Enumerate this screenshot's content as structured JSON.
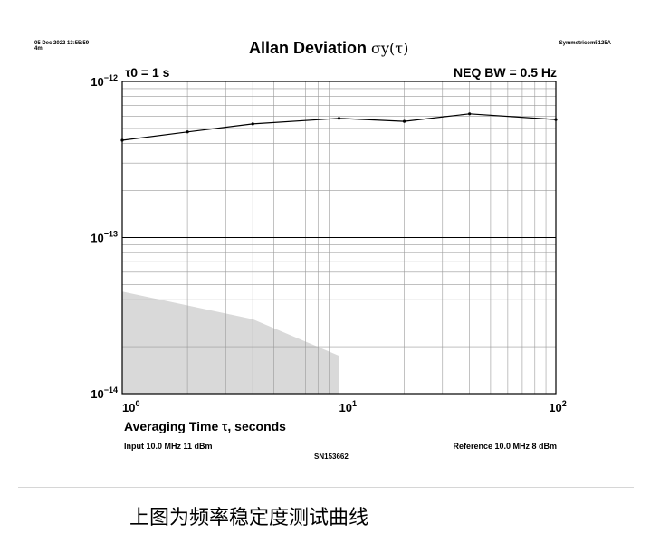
{
  "header": {
    "date_stamp": "05 Dec 2022 13:55:59",
    "duration_stamp": "4m",
    "instrument": "Symmetricom5125A"
  },
  "chart_data": {
    "type": "line",
    "title": "Allan Deviation",
    "title_symbol": "σy(τ)",
    "annotation_left": "τ0 = 1 s",
    "annotation_right": "NEQ BW = 0.5 Hz",
    "xlabel": "Averaging Time τ, seconds",
    "ylabel": "",
    "x_scale": "log",
    "y_scale": "log",
    "xlim": [
      1,
      100
    ],
    "ylim": [
      1e-14,
      1e-12
    ],
    "x_ticks": [
      {
        "value": 1,
        "base": "10",
        "exp": "0"
      },
      {
        "value": 10,
        "base": "10",
        "exp": "1"
      },
      {
        "value": 100,
        "base": "10",
        "exp": "2"
      }
    ],
    "y_ticks": [
      {
        "value": 1e-12,
        "base": "10",
        "exp": "−12"
      },
      {
        "value": 1e-13,
        "base": "10",
        "exp": "−13"
      },
      {
        "value": 1e-14,
        "base": "10",
        "exp": "−14"
      }
    ],
    "grid": true,
    "series": [
      {
        "x": [
          1,
          2,
          4,
          10,
          20,
          40,
          100
        ],
        "y": [
          4.2e-13,
          4.75e-13,
          5.35e-13,
          5.8e-13,
          5.55e-13,
          6.2e-13,
          5.7e-13
        ]
      }
    ],
    "noise_floor": {
      "x": [
        1,
        4,
        10
      ],
      "y": [
        4.5e-14,
        3e-14,
        1.75e-14
      ],
      "color": "#d9d9d9"
    }
  },
  "footer": {
    "input_info": "Input 10.0 MHz 11 dBm",
    "reference_info": "Reference 10.0 MHz 8 dBm",
    "serial": "SN153662"
  },
  "caption": "上图为频率稳定度测试曲线"
}
